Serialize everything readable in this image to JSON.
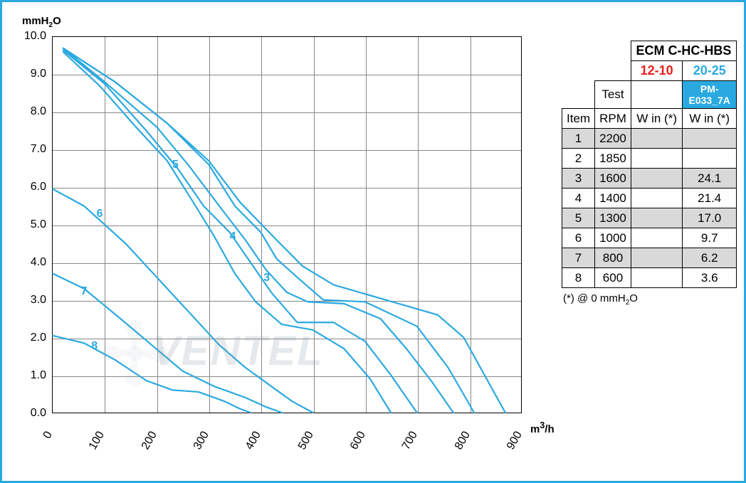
{
  "chart": {
    "type": "line",
    "ylabel_html": "mmH<sub>2</sub>O",
    "xlabel_html": "m<sup>3</sup>/h",
    "xlim": [
      0,
      900
    ],
    "ylim": [
      0,
      10
    ],
    "xtick_step": 100,
    "ytick_step": 1.0,
    "yticks_fmt": 1,
    "background_color": "#ffffff",
    "grid_color": "#888888",
    "curve_color": "#2aa9e0",
    "curve_width": 2.2,
    "label_color": "#2aa9e0",
    "label_fontsize": 16,
    "curves": [
      {
        "id": "1",
        "label_at": null,
        "points": [
          [
            20,
            9.7
          ],
          [
            120,
            8.8
          ],
          [
            220,
            7.7
          ],
          [
            300,
            6.7
          ],
          [
            360,
            5.6
          ],
          [
            430,
            4.6
          ],
          [
            480,
            3.9
          ],
          [
            540,
            3.4
          ],
          [
            640,
            3.0
          ],
          [
            740,
            2.6
          ],
          [
            790,
            2.0
          ],
          [
            830,
            1.0
          ],
          [
            870,
            0.0
          ]
        ]
      },
      {
        "id": "2",
        "label_at": null,
        "points": [
          [
            20,
            9.7
          ],
          [
            120,
            8.8
          ],
          [
            220,
            7.7
          ],
          [
            300,
            6.6
          ],
          [
            350,
            5.5
          ],
          [
            400,
            4.8
          ],
          [
            430,
            4.1
          ],
          [
            470,
            3.6
          ],
          [
            520,
            3.0
          ],
          [
            600,
            2.95
          ],
          [
            700,
            2.3
          ],
          [
            760,
            1.2
          ],
          [
            810,
            0.0
          ]
        ]
      },
      {
        "id": "3",
        "label_at": [
          410,
          3.6
        ],
        "points": [
          [
            20,
            9.7
          ],
          [
            100,
            8.8
          ],
          [
            200,
            7.6
          ],
          [
            260,
            6.6
          ],
          [
            320,
            5.5
          ],
          [
            370,
            4.6
          ],
          [
            410,
            3.8
          ],
          [
            450,
            3.2
          ],
          [
            490,
            2.95
          ],
          [
            560,
            2.9
          ],
          [
            630,
            2.5
          ],
          [
            680,
            1.7
          ],
          [
            730,
            0.8
          ],
          [
            770,
            0.0
          ]
        ]
      },
      {
        "id": "4",
        "label_at": [
          345,
          4.7
        ],
        "points": [
          [
            20,
            9.65
          ],
          [
            100,
            8.75
          ],
          [
            180,
            7.5
          ],
          [
            240,
            6.5
          ],
          [
            290,
            5.5
          ],
          [
            340,
            4.8
          ],
          [
            380,
            4.0
          ],
          [
            420,
            3.2
          ],
          [
            470,
            2.4
          ],
          [
            540,
            2.4
          ],
          [
            600,
            1.9
          ],
          [
            650,
            1.0
          ],
          [
            700,
            0.0
          ]
        ]
      },
      {
        "id": "5",
        "label_at": [
          235,
          6.6
        ],
        "points": [
          [
            20,
            9.6
          ],
          [
            90,
            8.7
          ],
          [
            160,
            7.6
          ],
          [
            220,
            6.7
          ],
          [
            270,
            5.6
          ],
          [
            310,
            4.7
          ],
          [
            350,
            3.7
          ],
          [
            390,
            2.95
          ],
          [
            440,
            2.35
          ],
          [
            500,
            2.2
          ],
          [
            560,
            1.7
          ],
          [
            610,
            0.9
          ],
          [
            650,
            0.0
          ]
        ]
      },
      {
        "id": "6",
        "label_at": [
          90,
          5.3
        ],
        "points": [
          [
            0,
            5.95
          ],
          [
            60,
            5.5
          ],
          [
            140,
            4.5
          ],
          [
            200,
            3.6
          ],
          [
            260,
            2.7
          ],
          [
            320,
            1.8
          ],
          [
            370,
            1.2
          ],
          [
            420,
            0.7
          ],
          [
            460,
            0.3
          ],
          [
            500,
            0.0
          ]
        ]
      },
      {
        "id": "7",
        "label_at": [
          60,
          3.25
        ],
        "points": [
          [
            0,
            3.7
          ],
          [
            60,
            3.3
          ],
          [
            130,
            2.5
          ],
          [
            190,
            1.8
          ],
          [
            250,
            1.1
          ],
          [
            310,
            0.7
          ],
          [
            370,
            0.4
          ],
          [
            410,
            0.15
          ],
          [
            440,
            0.0
          ]
        ]
      },
      {
        "id": "8",
        "label_at": [
          80,
          1.8
        ],
        "points": [
          [
            0,
            2.05
          ],
          [
            60,
            1.85
          ],
          [
            120,
            1.4
          ],
          [
            180,
            0.85
          ],
          [
            230,
            0.6
          ],
          [
            280,
            0.55
          ],
          [
            330,
            0.3
          ],
          [
            360,
            0.1
          ],
          [
            380,
            0.0
          ]
        ]
      }
    ]
  },
  "table": {
    "title": "ECM C-HC-HBS",
    "variant_a": "12-10",
    "variant_b": "20-25",
    "test_label": "Test",
    "pm_code": "PM-E033_7A",
    "col_item": "Item",
    "col_rpm": "RPM",
    "col_w": "W in (*)",
    "rows": [
      {
        "item": "1",
        "rpm": "2200",
        "wa": "",
        "wb": ""
      },
      {
        "item": "2",
        "rpm": "1850",
        "wa": "",
        "wb": ""
      },
      {
        "item": "3",
        "rpm": "1600",
        "wa": "",
        "wb": "24.1"
      },
      {
        "item": "4",
        "rpm": "1400",
        "wa": "",
        "wb": "21.4"
      },
      {
        "item": "5",
        "rpm": "1300",
        "wa": "",
        "wb": "17.0"
      },
      {
        "item": "6",
        "rpm": "1000",
        "wa": "",
        "wb": "9.7"
      },
      {
        "item": "7",
        "rpm": "800",
        "wa": "",
        "wb": "6.2"
      },
      {
        "item": "8",
        "rpm": "600",
        "wa": "",
        "wb": "3.6"
      }
    ],
    "footnote_html": "(*) @ 0 mmH<sub>2</sub>O",
    "shade_color": "#d9d9d9",
    "accent_color": "#2aa9e0",
    "variant_a_color": "#e8201b"
  },
  "watermark": {
    "text": "VENTEL",
    "color": "rgba(140,155,165,0.22)",
    "fontsize": 58
  },
  "frame_color": "#2aa9e0"
}
